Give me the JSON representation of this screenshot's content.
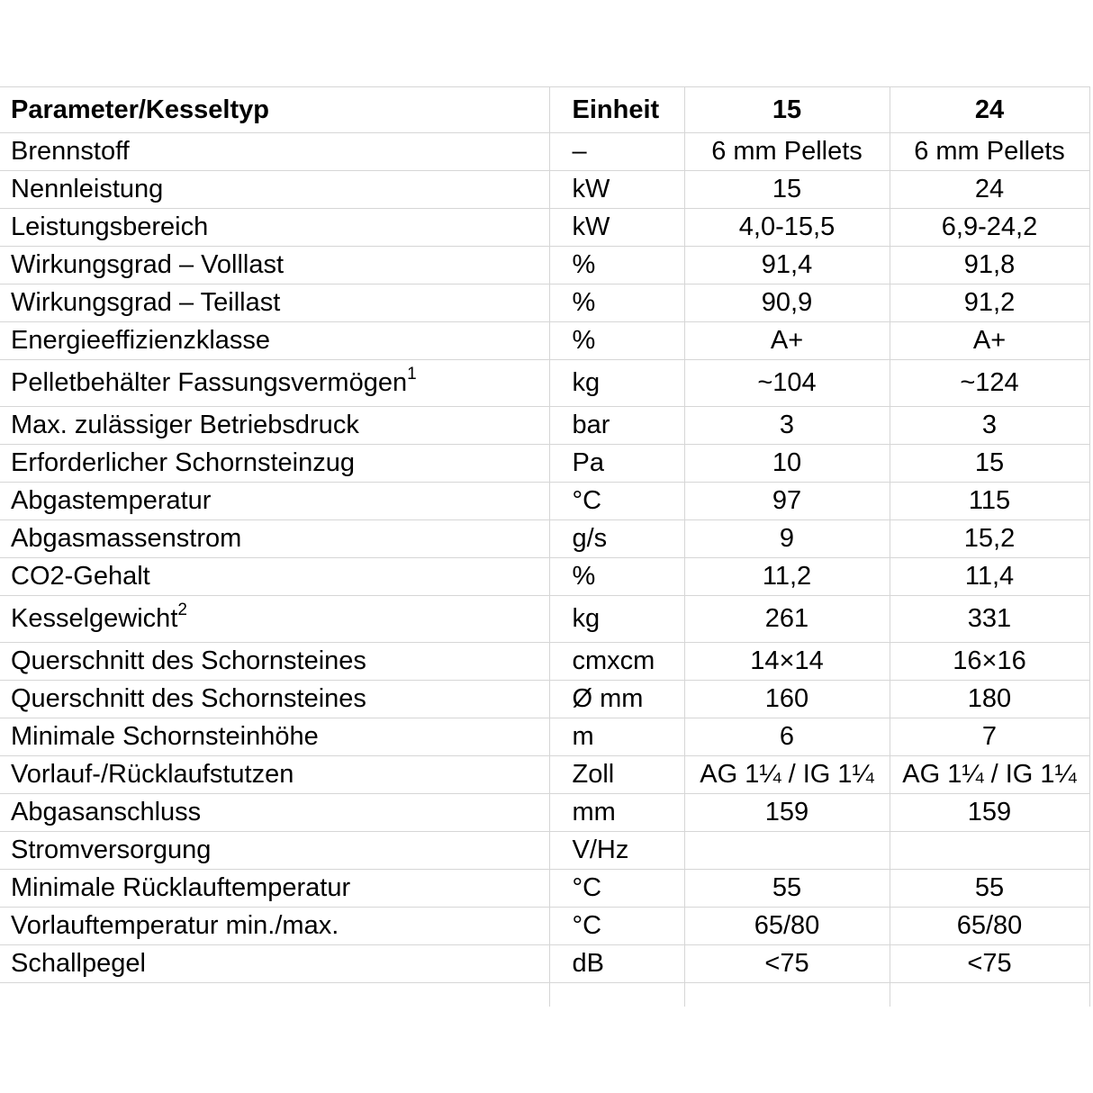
{
  "page": {
    "background": "#ffffff",
    "text_color": "#000000",
    "grid_color": "#d6d6d6"
  },
  "table": {
    "header": {
      "param": "Parameter/Kesseltyp",
      "unit": "Einheit",
      "col15": "15",
      "col24": "24"
    },
    "rows": [
      {
        "param": "Brennstoff",
        "unit": "–",
        "v15": "6 mm Pellets",
        "v24": "6 mm Pellets"
      },
      {
        "param": "Nennleistung",
        "unit": "kW",
        "v15": "15",
        "v24": "24"
      },
      {
        "param": "Leistungsbereich",
        "unit": "kW",
        "v15": "4,0-15,5",
        "v24": "6,9-24,2"
      },
      {
        "param": "Wirkungsgrad – Volllast",
        "unit": "%",
        "v15": "91,4",
        "v24": "91,8"
      },
      {
        "param": "Wirkungsgrad – Teillast",
        "unit": "%",
        "v15": "90,9",
        "v24": "91,2"
      },
      {
        "param": "Energieeffizienzklasse",
        "unit": "%",
        "v15": "A+",
        "v24": "A+"
      },
      {
        "param": "Pelletbehälter Fassungsvermögen",
        "sup": "1",
        "tall": true,
        "unit": "kg",
        "v15": "~104",
        "v24": "~124"
      },
      {
        "param": "Max. zulässiger Betriebsdruck",
        "unit": "bar",
        "v15": "3",
        "v24": "3"
      },
      {
        "param": "Erforderlicher Schornsteinzug",
        "unit": "Pa",
        "v15": "10",
        "v24": "15"
      },
      {
        "param": "Abgastemperatur",
        "unit": "°C",
        "v15": "97",
        "v24": "115"
      },
      {
        "param": "Abgasmassenstrom",
        "unit": "g/s",
        "v15": "9",
        "v24": "15,2"
      },
      {
        "param": "CO2-Gehalt",
        "unit": "%",
        "v15": "11,2",
        "v24": "11,4"
      },
      {
        "param": "Kesselgewicht",
        "sup": "2",
        "tall": true,
        "unit": "kg",
        "v15": "261",
        "v24": "331"
      },
      {
        "param": "Querschnitt des Schornsteines",
        "unit": "cmxcm",
        "v15": "14×14",
        "v24": "16×16"
      },
      {
        "param": "Querschnitt des Schornsteines",
        "unit": "Ø mm",
        "v15": "160",
        "v24": "180"
      },
      {
        "param": "Minimale Schornsteinhöhe",
        "unit": "m",
        "v15": "6",
        "v24": "7"
      },
      {
        "param": "Vorlauf-/Rücklaufstutzen",
        "unit": "Zoll",
        "v15": "AG 1¼ / IG 1¼",
        "v24": "AG 1¼ / IG 1¼"
      },
      {
        "param": "Abgasanschluss",
        "unit": "mm",
        "v15": "159",
        "v24": "159"
      },
      {
        "param": "Stromversorgung",
        "unit": "V/Hz",
        "v15": "",
        "v24": ""
      },
      {
        "param": "Minimale Rücklauftemperatur",
        "unit": "°C",
        "v15": "55",
        "v24": "55"
      },
      {
        "param": "Vorlauftemperatur min./max.",
        "unit": "°C",
        "v15": "65/80",
        "v24": "65/80"
      },
      {
        "param": "Schallpegel",
        "unit": "dB",
        "v15": "<75",
        "v24": "<75"
      }
    ]
  }
}
